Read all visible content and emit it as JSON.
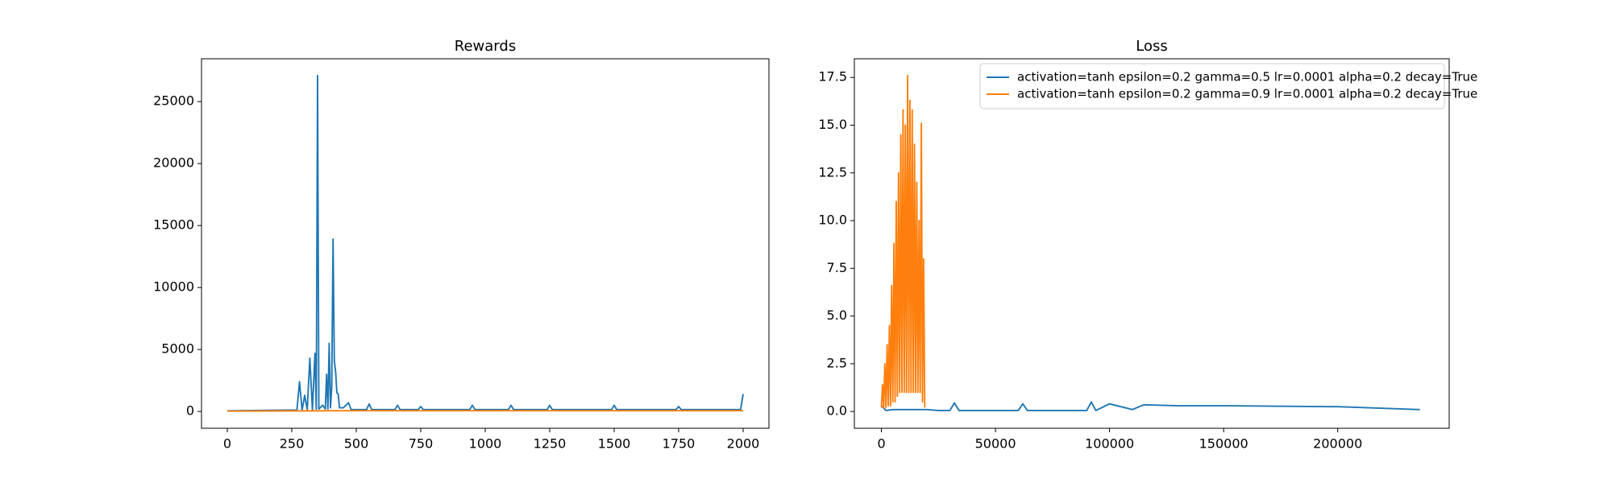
{
  "chart_data": [
    {
      "type": "line",
      "title": "Rewards",
      "xlim": [
        -100,
        2100
      ],
      "ylim": [
        -1355,
        28455
      ],
      "xticks": [
        0,
        250,
        500,
        750,
        1000,
        1250,
        1500,
        1750,
        2000
      ],
      "yticks": [
        0,
        5000,
        10000,
        15000,
        20000,
        25000
      ],
      "series": [
        {
          "color": "#1f77b4",
          "x": [
            0,
            100,
            200,
            270,
            280,
            290,
            300,
            310,
            320,
            330,
            340,
            345,
            350,
            355,
            370,
            380,
            385,
            390,
            395,
            400,
            405,
            410,
            415,
            420,
            425,
            430,
            435,
            450,
            470,
            480,
            540,
            550,
            560,
            650,
            660,
            670,
            740,
            750,
            760,
            940,
            950,
            960,
            1090,
            1100,
            1110,
            1240,
            1250,
            1260,
            1490,
            1500,
            1510,
            1740,
            1750,
            1760,
            1990,
            2000
          ],
          "values": [
            50,
            80,
            100,
            120,
            2400,
            100,
            1300,
            150,
            4300,
            150,
            4700,
            200,
            27100,
            200,
            500,
            200,
            3000,
            200,
            5500,
            300,
            2000,
            13900,
            4100,
            3200,
            1500,
            1400,
            300,
            300,
            700,
            150,
            150,
            600,
            150,
            150,
            500,
            150,
            150,
            400,
            150,
            150,
            500,
            150,
            150,
            500,
            150,
            150,
            500,
            150,
            150,
            500,
            150,
            150,
            400,
            150,
            150,
            1400
          ]
        },
        {
          "color": "#ff7f0e",
          "x": [
            0,
            500,
            1000,
            1500,
            2000
          ],
          "values": [
            30,
            60,
            60,
            60,
            60
          ]
        }
      ]
    },
    {
      "type": "line",
      "title": "Loss",
      "xlim": [
        -11850,
        248850
      ],
      "ylim": [
        -0.88,
        18.48
      ],
      "xticks": [
        0,
        50000,
        100000,
        150000,
        200000
      ],
      "yticks": [
        {
          "value": 0,
          "label": "0.0"
        },
        2.5,
        {
          "value": 5,
          "label": "5.0"
        },
        7.5,
        {
          "value": 10,
          "label": "10.0"
        },
        12.5,
        {
          "value": 15,
          "label": "15.0"
        },
        17.5
      ],
      "legend": "upper right",
      "series": [
        {
          "name": "activation=tanh epsilon=0.2 gamma=0.5 lr=0.0001 alpha=0.2 decay=True",
          "color": "#1f77b4",
          "x": [
            0,
            2000,
            5000,
            20000,
            25000,
            30000,
            32000,
            34000,
            50000,
            60000,
            62000,
            64000,
            70000,
            90000,
            92000,
            94000,
            100000,
            110000,
            115000,
            130000,
            150000,
            200000,
            236000
          ],
          "values": [
            0.3,
            0.05,
            0.1,
            0.1,
            0.05,
            0.05,
            0.45,
            0.05,
            0.05,
            0.05,
            0.4,
            0.05,
            0.05,
            0.05,
            0.5,
            0.05,
            0.4,
            0.1,
            0.35,
            0.3,
            0.3,
            0.25,
            0.1
          ]
        },
        {
          "name": "activation=tanh epsilon=0.2 gamma=0.9 lr=0.0001 alpha=0.2 decay=True",
          "color": "#ff7f0e",
          "x": [
            0,
            500,
            1000,
            1500,
            2000,
            2500,
            3000,
            3500,
            4000,
            4500,
            5000,
            5500,
            6000,
            6500,
            7000,
            7500,
            8000,
            8500,
            9000,
            9500,
            10000,
            10500,
            11000,
            11500,
            12000,
            12500,
            13000,
            13500,
            14000,
            14500,
            15000,
            15500,
            16000,
            16500,
            17000,
            17500,
            18000,
            18500,
            19000
          ],
          "values": [
            0.2,
            1.4,
            0.2,
            2.5,
            0.2,
            3.5,
            0.3,
            4.5,
            0.3,
            6.6,
            0.5,
            8.8,
            0.5,
            11,
            0.8,
            12.5,
            1,
            14.5,
            1,
            15.8,
            1,
            15,
            1,
            17.6,
            1,
            16.3,
            1,
            15.8,
            1,
            14,
            1,
            12,
            1,
            10,
            1,
            15.1,
            0.5,
            8,
            0.2
          ]
        }
      ]
    }
  ]
}
